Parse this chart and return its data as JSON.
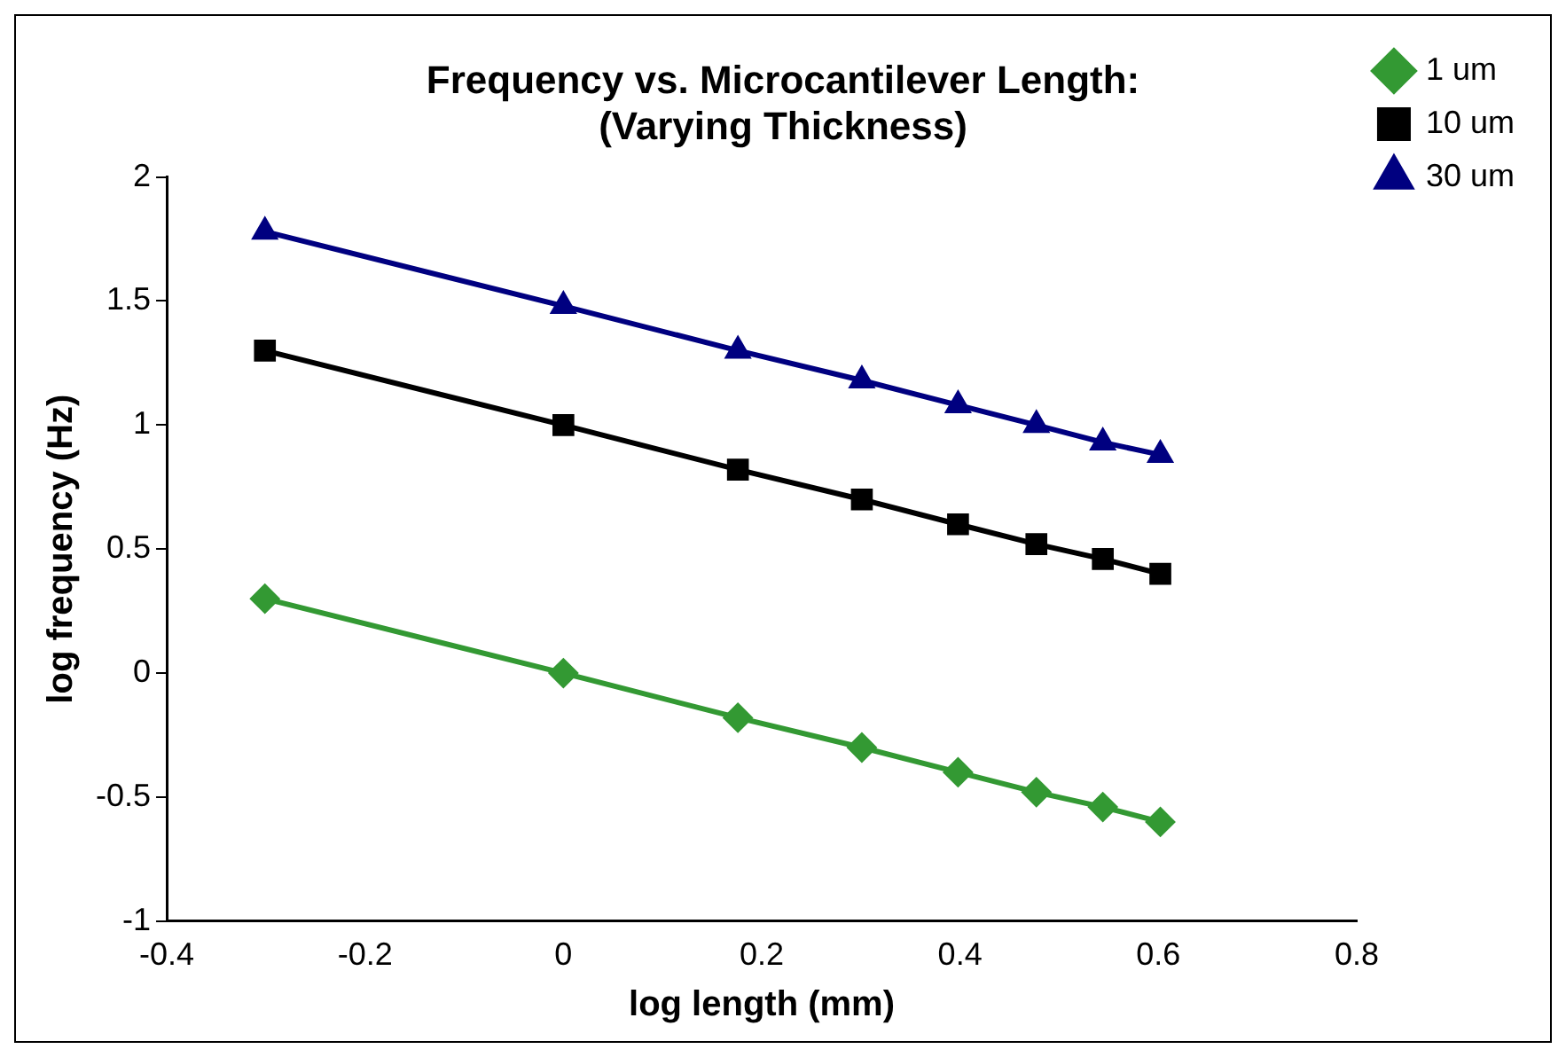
{
  "chart_data": {
    "type": "line",
    "title": "Frequency vs. Microcantilever Length:\n(Varying Thickness)",
    "xlabel": "log length (mm)",
    "ylabel": "log frequency (Hz)",
    "x": [
      -0.301,
      0,
      0.176,
      0.301,
      0.398,
      0.477,
      0.544,
      0.602
    ],
    "series": [
      {
        "name": "1 um",
        "color": "#339933",
        "marker": "diamond",
        "values": [
          0.3,
          0,
          -0.18,
          -0.3,
          -0.4,
          -0.48,
          -0.54,
          -0.6
        ]
      },
      {
        "name": "10 um",
        "color": "#000000",
        "marker": "square",
        "values": [
          1.3,
          1.0,
          0.82,
          0.7,
          0.6,
          0.52,
          0.46,
          0.4
        ]
      },
      {
        "name": "30 um",
        "color": "#000080",
        "marker": "triangle",
        "values": [
          1.78,
          1.48,
          1.3,
          1.18,
          1.08,
          1.0,
          0.93,
          0.88
        ]
      }
    ],
    "xlim": [
      -0.4,
      0.8
    ],
    "xticks": [
      -0.4,
      -0.2,
      0,
      0.2,
      0.4,
      0.6,
      0.8
    ],
    "ylim": [
      -1,
      2
    ],
    "yticks": [
      -1,
      -0.5,
      0,
      0.5,
      1,
      1.5,
      2
    ],
    "grid": false,
    "legend": "top right",
    "line_style": "solid"
  }
}
